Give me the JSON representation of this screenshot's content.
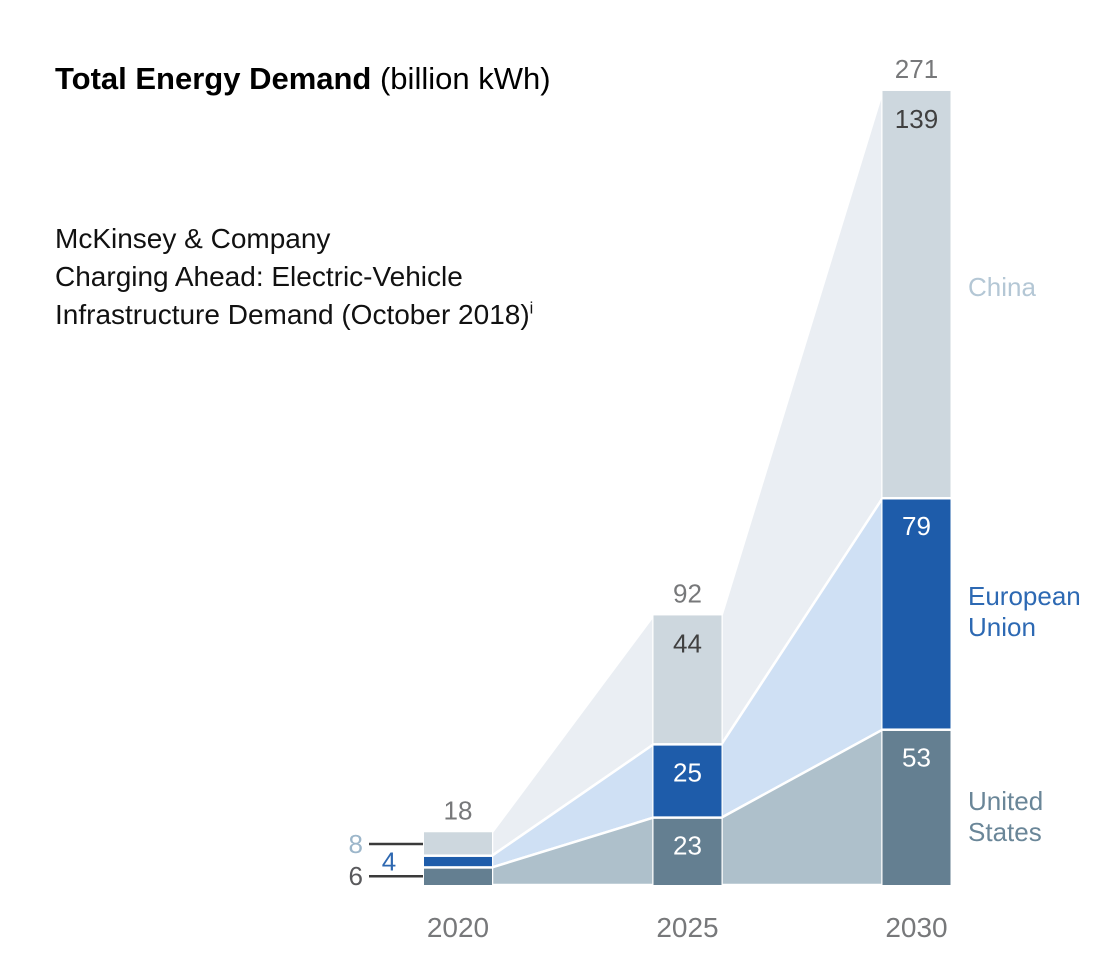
{
  "title": {
    "bold": "Total Energy Demand",
    "rest": " (billion kWh)"
  },
  "source": {
    "lines": [
      "McKinsey & Company",
      "Charging Ahead: Electric-Vehicle",
      "Infrastructure Demand (October 2018)"
    ],
    "superscript": "i"
  },
  "chart_data": {
    "type": "bar",
    "subtype": "stacked-bars-with-connecting-area-bands",
    "title": "Total Energy Demand (billion kWh)",
    "categories": [
      "2020",
      "2025",
      "2030"
    ],
    "series": [
      {
        "name": "China",
        "values": [
          8,
          44,
          139
        ],
        "bar_color": "#cdd7de",
        "band_color": "#eaeef3",
        "legend_color": "#b4c7d5",
        "value_text_color": "#404040"
      },
      {
        "name": "European Union",
        "values": [
          4,
          25,
          79
        ],
        "bar_color": "#1e5caa",
        "band_color": "#cfe0f4",
        "legend_color": "#2d69b3",
        "value_text_color": "#ffffff"
      },
      {
        "name": "United States",
        "values": [
          6,
          23,
          53
        ],
        "bar_color": "#647f91",
        "band_color": "#aec0cb",
        "legend_color": "#6a8698",
        "value_text_color": "#ffffff"
      }
    ],
    "totals": [
      18,
      92,
      271
    ],
    "total_label_color": "#77787a",
    "axis_tick_color": "#77787a",
    "first_bar_callouts": [
      {
        "value": 8,
        "series": "China",
        "color": "#9cb6ca",
        "leader_line": true
      },
      {
        "value": 4,
        "series": "European Union",
        "color": "#2e68b1",
        "leader_line": false
      },
      {
        "value": 6,
        "series": "United States",
        "color": "#59595c",
        "leader_line": true
      }
    ],
    "callout_line_color": "#3a3a3a",
    "legend_position": "right",
    "grid": false,
    "ylim": [
      0,
      271
    ],
    "xlabel": "",
    "ylabel": "billion kWh"
  }
}
